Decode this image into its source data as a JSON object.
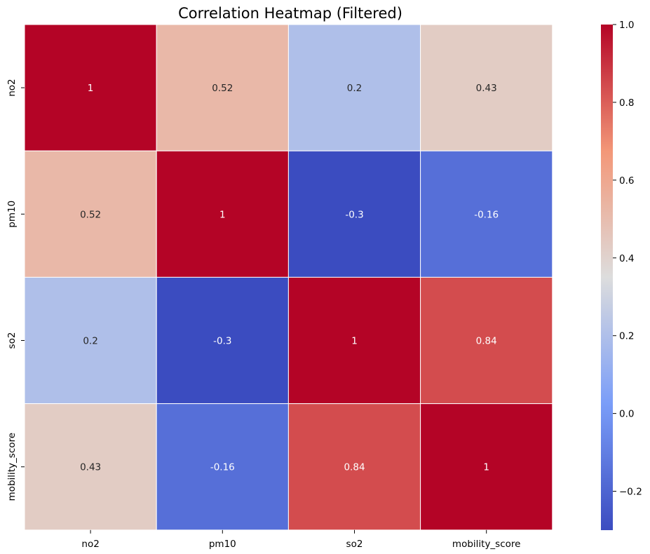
{
  "chart_data": {
    "type": "heatmap",
    "title": "Correlation Heatmap (Filtered)",
    "x_labels": [
      "no2",
      "pm10",
      "so2",
      "mobility_score"
    ],
    "y_labels": [
      "no2",
      "pm10",
      "so2",
      "mobility_score"
    ],
    "values": [
      [
        1,
        0.52,
        0.2,
        0.43
      ],
      [
        0.52,
        1,
        -0.3,
        -0.16
      ],
      [
        0.2,
        -0.3,
        1,
        0.84
      ],
      [
        0.43,
        -0.16,
        0.84,
        1
      ]
    ],
    "cell_labels": [
      [
        "1",
        "0.52",
        "0.2",
        "0.43"
      ],
      [
        "0.52",
        "1",
        "-0.3",
        "-0.16"
      ],
      [
        "0.2",
        "-0.3",
        "1",
        "0.84"
      ],
      [
        "0.43",
        "-0.16",
        "0.84",
        "1"
      ]
    ],
    "colormap": "coolwarm",
    "color_range": [
      -0.3,
      1.0
    ],
    "colorbar": {
      "ticks": [
        -0.2,
        0.0,
        0.2,
        0.4,
        0.6,
        0.8,
        1.0
      ],
      "tick_labels": [
        "−0.2",
        "0.0",
        "0.2",
        "0.4",
        "0.6",
        "0.8",
        "1.0"
      ]
    },
    "colorbar_position": "right",
    "cell_borders": "white"
  }
}
